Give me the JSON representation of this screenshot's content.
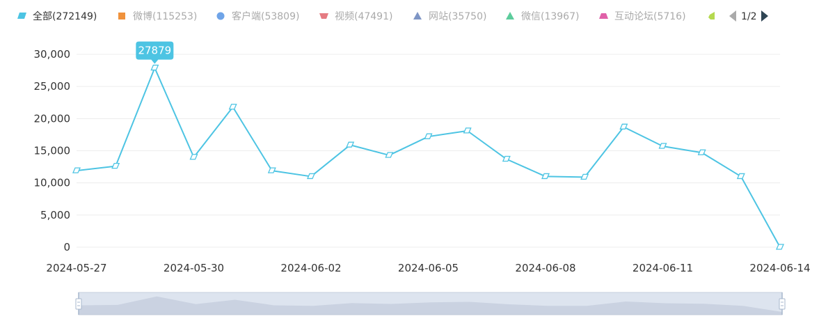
{
  "legend": {
    "items": [
      {
        "label": "全部(272149)",
        "color": "#4dc4e3",
        "shape": "parallelogram",
        "active": true
      },
      {
        "label": "微博(115253)",
        "color": "#f0923c",
        "shape": "square",
        "active": false
      },
      {
        "label": "客户端(53809)",
        "color": "#6fa4e8",
        "shape": "circle",
        "active": false
      },
      {
        "label": "视频(47491)",
        "color": "#e57b82",
        "shape": "trapezoid-down",
        "active": false
      },
      {
        "label": "网站(35750)",
        "color": "#7e95c5",
        "shape": "triangle",
        "active": false
      },
      {
        "label": "微信(13967)",
        "color": "#5ccc9c",
        "shape": "triangle",
        "active": false
      },
      {
        "label": "互动论坛(5716)",
        "color": "#e060a8",
        "shape": "trapezoid-up",
        "active": false
      },
      {
        "label": "",
        "color": "#b5d94f",
        "shape": "pentagon",
        "active": false
      }
    ],
    "inactive_text_color": "#aaaaaa",
    "pager": {
      "text": "1/2",
      "prev_color": "#aaaaaa",
      "next_color": "#2f4554"
    }
  },
  "tooltip": {
    "text": "27879",
    "color": "#4dc4e3"
  },
  "chart_data": {
    "type": "line",
    "x": [
      "2024-05-27",
      "2024-05-28",
      "2024-05-29",
      "2024-05-30",
      "2024-05-31",
      "2024-06-01",
      "2024-06-02",
      "2024-06-03",
      "2024-06-04",
      "2024-06-05",
      "2024-06-06",
      "2024-06-07",
      "2024-06-08",
      "2024-06-09",
      "2024-06-10",
      "2024-06-11",
      "2024-06-12",
      "2024-06-13",
      "2024-06-14"
    ],
    "x_tick_labels": [
      "2024-05-27",
      "2024-05-30",
      "2024-06-02",
      "2024-06-05",
      "2024-06-08",
      "2024-06-11",
      "2024-06-14"
    ],
    "series": [
      {
        "name": "全部",
        "color": "#4dc4e3",
        "values": [
          11900,
          12600,
          27879,
          14000,
          21800,
          11900,
          11000,
          15900,
          14300,
          17200,
          18100,
          13700,
          11000,
          10900,
          18700,
          15700,
          14700,
          11000,
          0
        ]
      }
    ],
    "ylim": [
      0,
      30000
    ],
    "y_ticks": [
      0,
      5000,
      10000,
      15000,
      20000,
      25000,
      30000
    ],
    "y_tick_labels": [
      "0",
      "5,000",
      "10,000",
      "15,000",
      "20,000",
      "25,000",
      "30,000"
    ],
    "grid": true,
    "highlight_index": 2
  },
  "datazoom": {
    "fill": "#dde4ef",
    "area_color": "#b9c3d6",
    "border_color": "#c5cedc",
    "handle_color": "#a7b7cc"
  }
}
